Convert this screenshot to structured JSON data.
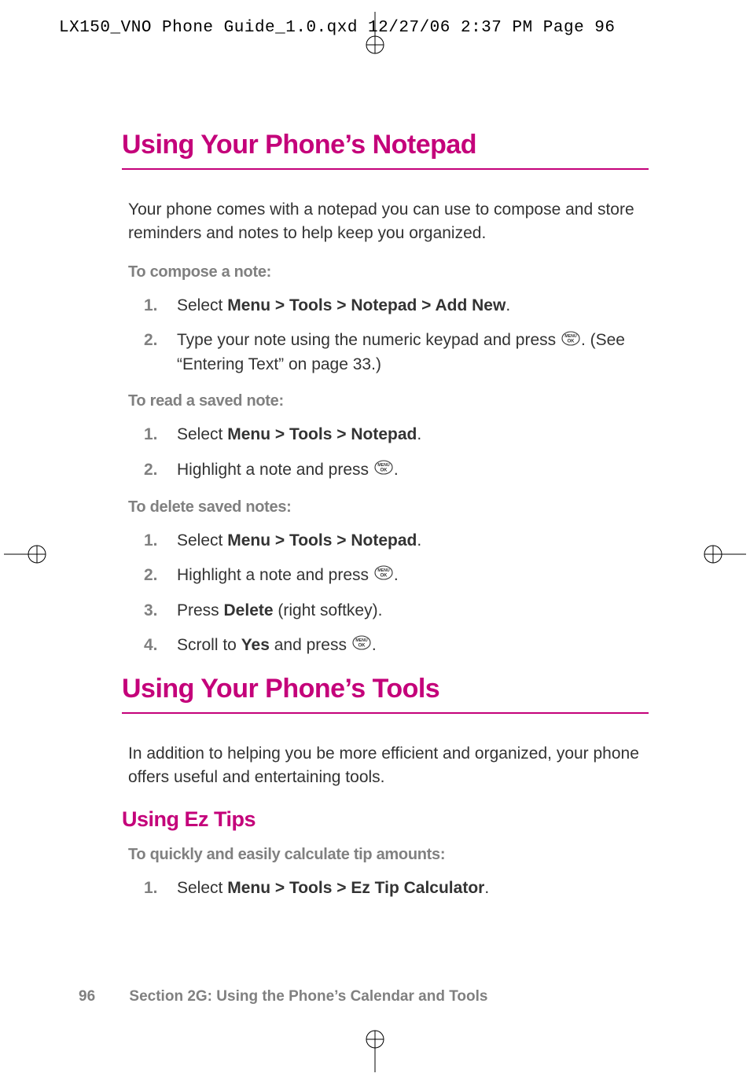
{
  "colors": {
    "accent": "#c4017a",
    "body_text": "#333333",
    "muted": "#808080",
    "background": "#ffffff"
  },
  "typography": {
    "heading_fontsize": 34,
    "subheading_fontsize": 27,
    "body_fontsize": 21,
    "label_fontsize": 20,
    "footer_fontsize": 19,
    "header_mono_fontsize": 21
  },
  "header": {
    "text": "LX150_VNO Phone Guide_1.0.qxd  12/27/06  2:37 PM  Page 96"
  },
  "section1": {
    "title": "Using Your Phone’s Notepad",
    "intro": "Your phone comes with a notepad you can use to compose and store reminders and notes to help keep you organized.",
    "compose_label": "To compose a note:",
    "compose_steps": [
      {
        "num": "1.",
        "pre": "Select ",
        "bold": "Menu > Tools > Notepad > Add New",
        "post": "."
      },
      {
        "num": "2.",
        "pre": "Type your note using the numeric keypad and press ",
        "icon": true,
        "post": ". (See “Entering Text” on page 33.)"
      }
    ],
    "read_label": "To read a saved note:",
    "read_steps": [
      {
        "num": "1.",
        "pre": "Select ",
        "bold": "Menu > Tools > Notepad",
        "post": "."
      },
      {
        "num": "2.",
        "pre": "Highlight a note and press ",
        "icon": true,
        "post": "."
      }
    ],
    "delete_label": "To delete saved notes:",
    "delete_steps": [
      {
        "num": "1.",
        "pre": "Select ",
        "bold": "Menu > Tools > Notepad",
        "post": "."
      },
      {
        "num": "2.",
        "pre": "Highlight a note and press ",
        "icon": true,
        "post": "."
      },
      {
        "num": "3.",
        "pre": "Press ",
        "bold": "Delete",
        "post": " (right softkey)."
      },
      {
        "num": "4.",
        "pre": "Scroll to ",
        "bold": "Yes",
        "post_pre_icon": " and press ",
        "icon": true,
        "post": "."
      }
    ]
  },
  "section2": {
    "title": "Using Your Phone’s Tools",
    "intro": "In addition to helping you be more efficient and organized, your phone offers useful and entertaining tools.",
    "eztips_title": "Using Ez Tips",
    "eztips_label": "To quickly and easily calculate tip amounts:",
    "eztips_steps": [
      {
        "num": "1.",
        "pre": "Select ",
        "bold": "Menu > Tools > Ez Tip Calculator",
        "post": "."
      }
    ]
  },
  "footer": {
    "page_number": "96",
    "section_label": "Section 2G: Using the Phone’s Calendar and Tools"
  }
}
